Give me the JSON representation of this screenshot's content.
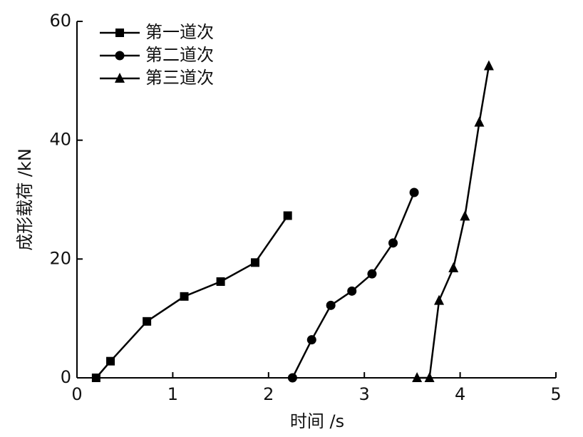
{
  "chart_data": {
    "type": "line",
    "xlabel": "时间 /s",
    "ylabel": "成形载荷 /kN",
    "xlim": [
      0,
      5
    ],
    "ylim": [
      0,
      60
    ],
    "xticks": [
      0,
      1,
      2,
      3,
      4,
      5
    ],
    "yticks": [
      0,
      20,
      40,
      60
    ],
    "legend": "upper left",
    "series": [
      {
        "name": "第一道次",
        "color": "#000000",
        "marker": "square",
        "x": [
          0.2,
          0.35,
          0.73,
          1.12,
          1.5,
          1.86,
          2.2
        ],
        "values": [
          0,
          2.8,
          9.5,
          13.7,
          16.2,
          19.4,
          27.3
        ]
      },
      {
        "name": "第二道次",
        "color": "#000000",
        "marker": "circle",
        "x": [
          2.25,
          2.45,
          2.65,
          2.87,
          3.08,
          3.3,
          3.52
        ],
        "values": [
          0,
          6.4,
          12.2,
          14.6,
          17.5,
          22.7,
          31.2
        ]
      },
      {
        "name": "第三道次",
        "color": "#000000",
        "marker": "triangle",
        "x": [
          3.55,
          3.68,
          3.78,
          3.93,
          4.05,
          4.2,
          4.3
        ],
        "values": [
          0,
          0,
          13,
          18.5,
          27.2,
          43,
          52.5
        ]
      }
    ]
  }
}
